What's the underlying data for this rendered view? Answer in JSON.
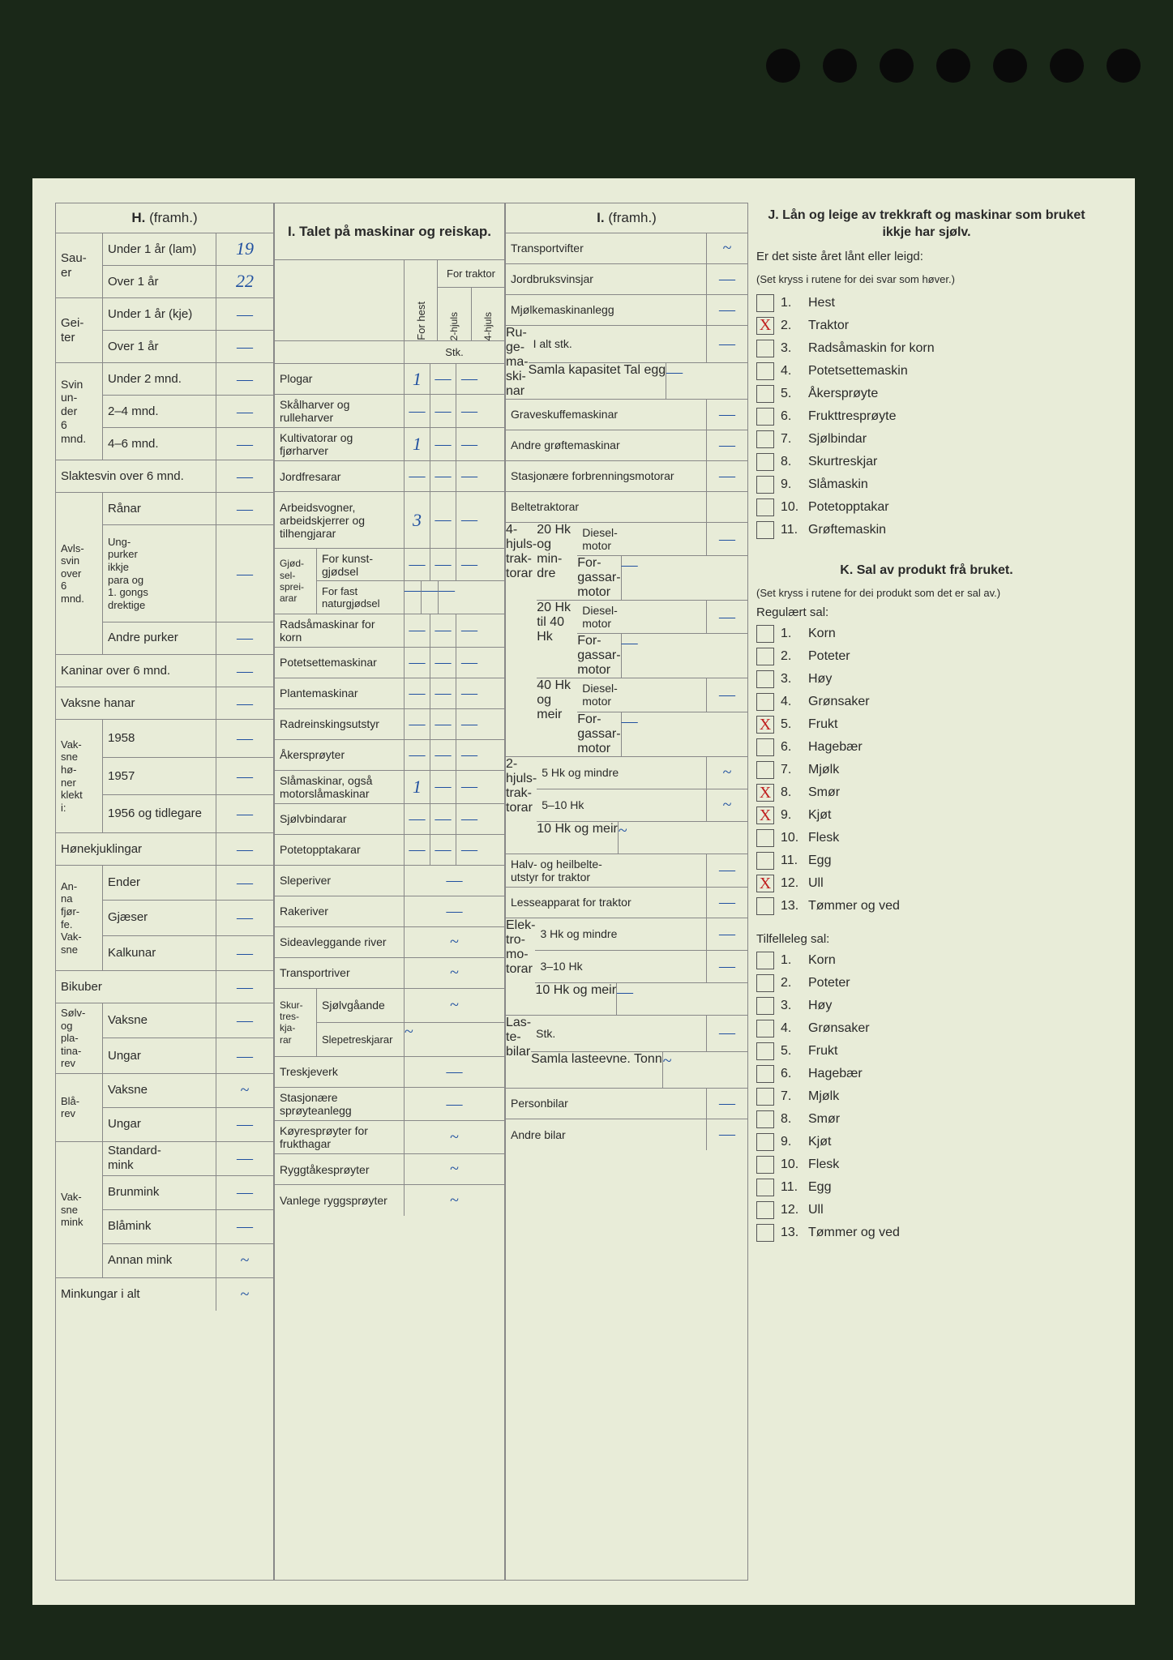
{
  "sections": {
    "H": {
      "title": "H.",
      "sub": "(framh.)"
    },
    "I_title": {
      "title": "I. Talet på maskinar og reiskap."
    },
    "I": {
      "title": "I.",
      "sub": "(framh.)"
    },
    "J": {
      "title": "J. Lån og leige av trekkraft og maskinar som bruket ikkje har sjølv.",
      "sub1": "Er det siste året lånt eller leigd:",
      "sub2": "(Set kryss i rutene for dei svar som høver.)"
    },
    "K": {
      "title": "K. Sal av produkt frå bruket.",
      "sub1": "(Set kryss i rutene for dei produkt som det er sal av.)",
      "regular": "Regulært sal:",
      "occasional": "Tilfelleleg sal:"
    }
  },
  "col1": {
    "sauer": "Sau-\ner",
    "sauer_u1": "Under 1 år (lam)",
    "sauer_u1_val": "19",
    "sauer_o1": "Over 1 år",
    "sauer_o1_val": "22",
    "geiter": "Gei-\nter",
    "geiter_u1": "Under 1 år (kje)",
    "geiter_o1": "Over 1 år",
    "svin": "Svin\nun-\nder\n6\nmnd.",
    "svin_u2": "Under 2 mnd.",
    "svin_24": "2–4 mnd.",
    "svin_46": "4–6 mnd.",
    "slaktesvin": "Slaktesvin over 6 mnd.",
    "avlssvin": "Avls-\nsvin\nover\n6\nmnd.",
    "ranar": "Rånar",
    "ungpurker": "Ung-\npurker\nikkje\npara og\n1. gongs\ndrektige",
    "andrepurker": "Andre purker",
    "kaninar": "Kaninar over 6 mnd.",
    "vaksnehanar": "Vaksne hanar",
    "vaksnehoner": "Vak-\nsne\nhø-\nner\nklekt\ni:",
    "h1958": "1958",
    "h1957": "1957",
    "h1956": "1956 og tidlegare",
    "honekjuklingar": "Hønekjuklingar",
    "anna": "An-\nna\nfjør-\nfe.\nVak-\nsne",
    "ender": "Ender",
    "gjaeser": "Gjæser",
    "kalkunar": "Kalkunar",
    "bikuber": "Bikuber",
    "solvrev": "Sølv-\nog\npla-\ntina-\nrev",
    "solv_vaksne": "Vaksne",
    "solv_ungar": "Ungar",
    "blarev": "Blå-\nrev",
    "bla_vaksne": "Vaksne",
    "bla_ungar": "Ungar",
    "vaksnemink": "Vak-\nsne\nmink",
    "standardmink": "Standard-\nmink",
    "brunmink": "Brunmink",
    "blamink": "Blåmink",
    "annanmink": "Annan mink",
    "minkungar": "Minkungar i alt"
  },
  "col2": {
    "head_hest": "For hest",
    "head_traktor": "For traktor",
    "head_2hjuls": "2-hjuls",
    "head_4hjuls": "4-hjuls",
    "stk": "Stk.",
    "plogar": "Plogar",
    "plogar_v1": "1",
    "skalharver": "Skålharver og rulleharver",
    "kultivatorar": "Kultivatorar og fjørharver",
    "kultivatorar_v1": "1",
    "jordfresarar": "Jordfresarar",
    "arbeidsvogner": "Arbeidsvogner, arbeidskjerrer og tilhengjarar",
    "arbeidsvogner_v1": "3",
    "gjodsel": "Gjød-\nsel-\nsprei-\narar",
    "kunstgjodsel": "For kunst-\ngjødsel",
    "naturgjodsel": "For fast naturgjødsel",
    "radsamaskinar": "Radsåmaskinar for korn",
    "potetsettemaskinar": "Potetsettemaskinar",
    "plantemaskinar": "Plantemaskinar",
    "radreinsking": "Radreinskingsutstyr",
    "akersproyter": "Åkersprøyter",
    "slamaskinar": "Slåmaskinar, også motorslåmaskinar",
    "slamaskinar_v1": "1",
    "sjolvbindarar": "Sjølvbindarar",
    "potetopptakarar": "Potetopptakarar",
    "sleperiver": "Sleperiver",
    "rakeriver": "Rakeriver",
    "sideavleggande": "Sideavleggande river",
    "transportriver": "Transportriver",
    "skurtresk": "Skur-\ntres-\nkja-\nrar",
    "sjolvgaande": "Sjølvgåande",
    "slepetreskjarar": "Slepetreskjarar",
    "treskjeverk": "Treskjeverk",
    "stasjonaere_sproyteanlegg": "Stasjonære sprøyteanlegg",
    "koyresproter": "Køyresprøyter for frukthagar",
    "ryggtakesproter": "Ryggtåkesprøyter",
    "vanlegrygg": "Vanlege ryggsprøyter"
  },
  "col3": {
    "transportvifter": "Transportvifter",
    "jordbruksvinsjar": "Jordbruksvinsjar",
    "mjolkemaskin": "Mjølkemaskinanlegg",
    "rugemaskinar": "Ru-\nge-\nma-\nski-\nnar",
    "ialt": "I alt stk.",
    "samla": "Samla kapasitet Tal egg",
    "graveskuffe": "Graveskuffemaskinar",
    "andregroefte": "Andre grøftemaskinar",
    "stasjonaere": "Stasjonære forbrenningsmotorar",
    "beltetraktorar": "Beltetraktorar",
    "4hjuls": "4-\nhjuls-\ntrak-\ntorar",
    "20hk_mindre": "20 Hk og min-\ndre",
    "20hk_40hk": "20 Hk til 40 Hk",
    "40hk_meir": "40 Hk og meir",
    "diesel": "Diesel-\nmotor",
    "forgassar": "For-\ngassar-\nmotor",
    "2hjuls": "2-\nhjuls-\ntrak-\ntorar",
    "5hk_mindre": "5 Hk og mindre",
    "5_10hk": "5–10 Hk",
    "10hk_meir": "10 Hk og meir",
    "halvbelte": "Halv- og heilbelte-\nutstyr for traktor",
    "lesseapparat": "Lesseapparat for traktor",
    "elektro": "Elek-\ntro-\nmo-\ntorar",
    "3hk_mindre": "3 Hk og mindre",
    "3_10hk": "3–10 Hk",
    "lastebilar": "Las-\nte-\nbilar",
    "stk": "Stk.",
    "samla_laste": "Samla lasteevne. Tonn",
    "personbilar": "Personbilar",
    "andrebilar": "Andre bilar"
  },
  "J_items": [
    {
      "n": "1.",
      "label": "Hest",
      "x": ""
    },
    {
      "n": "2.",
      "label": "Traktor",
      "x": "X"
    },
    {
      "n": "3.",
      "label": "Radsåmaskin for korn",
      "x": ""
    },
    {
      "n": "4.",
      "label": "Potetsettemaskin",
      "x": ""
    },
    {
      "n": "5.",
      "label": "Åkersprøyte",
      "x": ""
    },
    {
      "n": "6.",
      "label": "Frukttresprøyte",
      "x": ""
    },
    {
      "n": "7.",
      "label": "Sjølbindar",
      "x": ""
    },
    {
      "n": "8.",
      "label": "Skurtreskjar",
      "x": ""
    },
    {
      "n": "9.",
      "label": "Slåmaskin",
      "x": ""
    },
    {
      "n": "10.",
      "label": "Potetopptakar",
      "x": ""
    },
    {
      "n": "11.",
      "label": "Grøftemaskin",
      "x": ""
    }
  ],
  "K_reg": [
    {
      "n": "1.",
      "label": "Korn",
      "x": ""
    },
    {
      "n": "2.",
      "label": "Poteter",
      "x": ""
    },
    {
      "n": "3.",
      "label": "Høy",
      "x": ""
    },
    {
      "n": "4.",
      "label": "Grønsaker",
      "x": ""
    },
    {
      "n": "5.",
      "label": "Frukt",
      "x": "X"
    },
    {
      "n": "6.",
      "label": "Hagebær",
      "x": ""
    },
    {
      "n": "7.",
      "label": "Mjølk",
      "x": ""
    },
    {
      "n": "8.",
      "label": "Smør",
      "x": "X"
    },
    {
      "n": "9.",
      "label": "Kjøt",
      "x": "X"
    },
    {
      "n": "10.",
      "label": "Flesk",
      "x": ""
    },
    {
      "n": "11.",
      "label": "Egg",
      "x": ""
    },
    {
      "n": "12.",
      "label": "Ull",
      "x": "X"
    },
    {
      "n": "13.",
      "label": "Tømmer og ved",
      "x": ""
    }
  ],
  "K_occ": [
    {
      "n": "1.",
      "label": "Korn"
    },
    {
      "n": "2.",
      "label": "Poteter"
    },
    {
      "n": "3.",
      "label": "Høy"
    },
    {
      "n": "4.",
      "label": "Grønsaker"
    },
    {
      "n": "5.",
      "label": "Frukt"
    },
    {
      "n": "6.",
      "label": "Hagebær"
    },
    {
      "n": "7.",
      "label": "Mjølk"
    },
    {
      "n": "8.",
      "label": "Smør"
    },
    {
      "n": "9.",
      "label": "Kjøt"
    },
    {
      "n": "10.",
      "label": "Flesk"
    },
    {
      "n": "11.",
      "label": "Egg"
    },
    {
      "n": "12.",
      "label": "Ull"
    },
    {
      "n": "13.",
      "label": "Tømmer og ved"
    }
  ]
}
